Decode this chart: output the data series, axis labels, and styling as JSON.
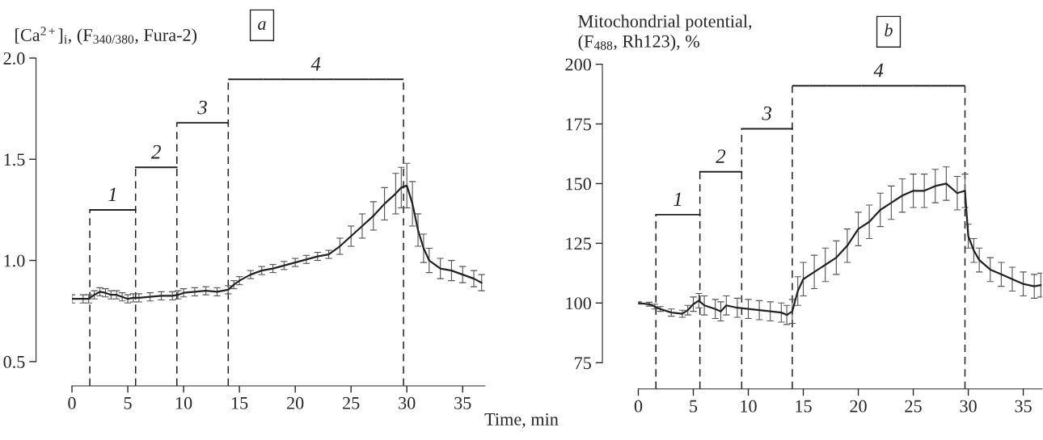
{
  "chart_data": [
    {
      "type": "line",
      "title": "a",
      "xlabel": "Time, min",
      "ylabel": "[Ca$^{2+}$]$_{i}$, (F$_{340/380}$, Fura-2)",
      "xlim": [
        0,
        37
      ],
      "xticks": [
        0,
        5,
        10,
        15,
        20,
        25,
        30,
        35
      ],
      "ylim": [
        0.38,
        2.0
      ],
      "yticks": [
        0.5,
        {
          "value": 1.0,
          "label": "1.0"
        },
        1.5,
        {
          "value": 2.0,
          "label": "2.0"
        }
      ],
      "grid": false,
      "legend": false,
      "marker": "none",
      "line_style": "solid",
      "series": [
        {
          "color": "#222222",
          "x": [
            0,
            1,
            1.5,
            2,
            2.5,
            3,
            3.5,
            4,
            4.5,
            5,
            5.5,
            6,
            7,
            8,
            9,
            9.5,
            10,
            11,
            12,
            13,
            14,
            14.5,
            15,
            16,
            17,
            18,
            19,
            20,
            21,
            22,
            23,
            24,
            25,
            26,
            27,
            28,
            29,
            29.5,
            30,
            30.5,
            31,
            31.5,
            32,
            33,
            34,
            35,
            36,
            36.7
          ],
          "values": [
            0.81,
            0.81,
            0.81,
            0.83,
            0.845,
            0.84,
            0.83,
            0.83,
            0.82,
            0.81,
            0.815,
            0.815,
            0.82,
            0.825,
            0.825,
            0.83,
            0.84,
            0.845,
            0.85,
            0.845,
            0.855,
            0.88,
            0.9,
            0.93,
            0.95,
            0.96,
            0.975,
            0.99,
            1.005,
            1.02,
            1.03,
            1.07,
            1.12,
            1.17,
            1.22,
            1.28,
            1.33,
            1.36,
            1.37,
            1.28,
            1.15,
            1.06,
            1.0,
            0.96,
            0.95,
            0.93,
            0.91,
            0.89
          ],
          "errors": [
            0.02,
            0.02,
            0.02,
            0.02,
            0.02,
            0.02,
            0.02,
            0.02,
            0.02,
            0.02,
            0.02,
            0.02,
            0.02,
            0.02,
            0.02,
            0.02,
            0.02,
            0.02,
            0.02,
            0.02,
            0.02,
            0.02,
            0.02,
            0.02,
            0.02,
            0.02,
            0.02,
            0.02,
            0.02,
            0.02,
            0.02,
            0.04,
            0.05,
            0.06,
            0.07,
            0.08,
            0.1,
            0.1,
            0.11,
            0.11,
            0.08,
            0.07,
            0.06,
            0.05,
            0.05,
            0.04,
            0.04,
            0.04
          ]
        }
      ],
      "ref_lines": [
        {
          "axis": "x",
          "value": 1.6,
          "line_style": "dashed"
        },
        {
          "axis": "x",
          "value": 5.7,
          "line_style": "dashed"
        },
        {
          "axis": "x",
          "value": 9.4,
          "line_style": "dashed"
        },
        {
          "axis": "x",
          "value": 14,
          "line_style": "dashed"
        },
        {
          "axis": "x",
          "value": 29.7,
          "line_style": "dashed"
        }
      ],
      "annotations": [
        {
          "text": "1",
          "x": 1.6,
          "y": 1.25
        },
        {
          "text": "2",
          "x": 5.7,
          "y": 1.46
        },
        {
          "text": "3",
          "x": 9.4,
          "y": 1.68
        },
        "4"
      ]
    },
    {
      "type": "line",
      "title": "b",
      "ylabel": "Mitochondrial potential,\n(F$_{488}$, Rh123), %",
      "xlim": [
        0,
        36.7
      ],
      "xticks": [
        0,
        5,
        10,
        15,
        20,
        25,
        30,
        35
      ],
      "ylim": [
        64,
        200
      ],
      "yticks": [
        75,
        100,
        125,
        150,
        175,
        200
      ],
      "grid": false,
      "legend": false,
      "marker": "none",
      "line_style": "solid",
      "series": [
        {
          "color": "#222222",
          "x": [
            0,
            1,
            1.5,
            2,
            3,
            4,
            4.5,
            5,
            5.5,
            6,
            7,
            7.5,
            8,
            9,
            10,
            11,
            12,
            13,
            13.5,
            14,
            14.5,
            15,
            16,
            17,
            18,
            19,
            20,
            21,
            22,
            23,
            24,
            25,
            26,
            27,
            28,
            29,
            29.7,
            30,
            30.5,
            31,
            32,
            33,
            34,
            35,
            36,
            36.6
          ],
          "values": [
            100,
            99.5,
            98.5,
            97.5,
            96,
            95.5,
            97,
            99.5,
            101,
            99,
            97.5,
            96.5,
            99,
            98,
            97.5,
            97,
            96.5,
            96,
            95,
            96.5,
            105,
            110,
            113,
            116,
            119,
            124,
            131,
            134,
            139,
            142,
            145,
            147,
            147,
            149,
            150,
            146,
            147,
            128,
            122,
            118,
            114,
            112,
            110,
            108,
            107,
            107.5
          ],
          "errors": [
            0.5,
            0.8,
            1,
            1,
            1.5,
            1.5,
            2,
            3,
            3,
            4,
            4,
            4,
            4,
            4,
            4,
            4,
            4,
            4,
            4,
            5,
            6,
            7,
            7,
            7,
            7,
            7,
            7,
            7,
            7,
            7,
            7,
            7,
            7,
            7,
            7,
            7,
            7,
            5,
            5,
            5,
            5,
            5,
            5,
            5,
            5,
            5
          ]
        }
      ],
      "ref_lines": [
        {
          "axis": "x",
          "value": 1.6,
          "line_style": "dashed"
        },
        {
          "axis": "x",
          "value": 5.6,
          "line_style": "dashed"
        },
        {
          "axis": "x",
          "value": 9.4,
          "line_style": "dashed"
        },
        {
          "axis": "x",
          "value": 14,
          "line_style": "dashed"
        },
        {
          "axis": "x",
          "value": 29.7,
          "line_style": "dashed"
        }
      ],
      "annotations": [
        {
          "text": "1",
          "x": 1.6,
          "y": 137
        },
        {
          "text": "2",
          "x": 5.6,
          "y": 155
        },
        {
          "text": "3",
          "x": 9.4,
          "y": 173
        },
        "4"
      ]
    }
  ]
}
